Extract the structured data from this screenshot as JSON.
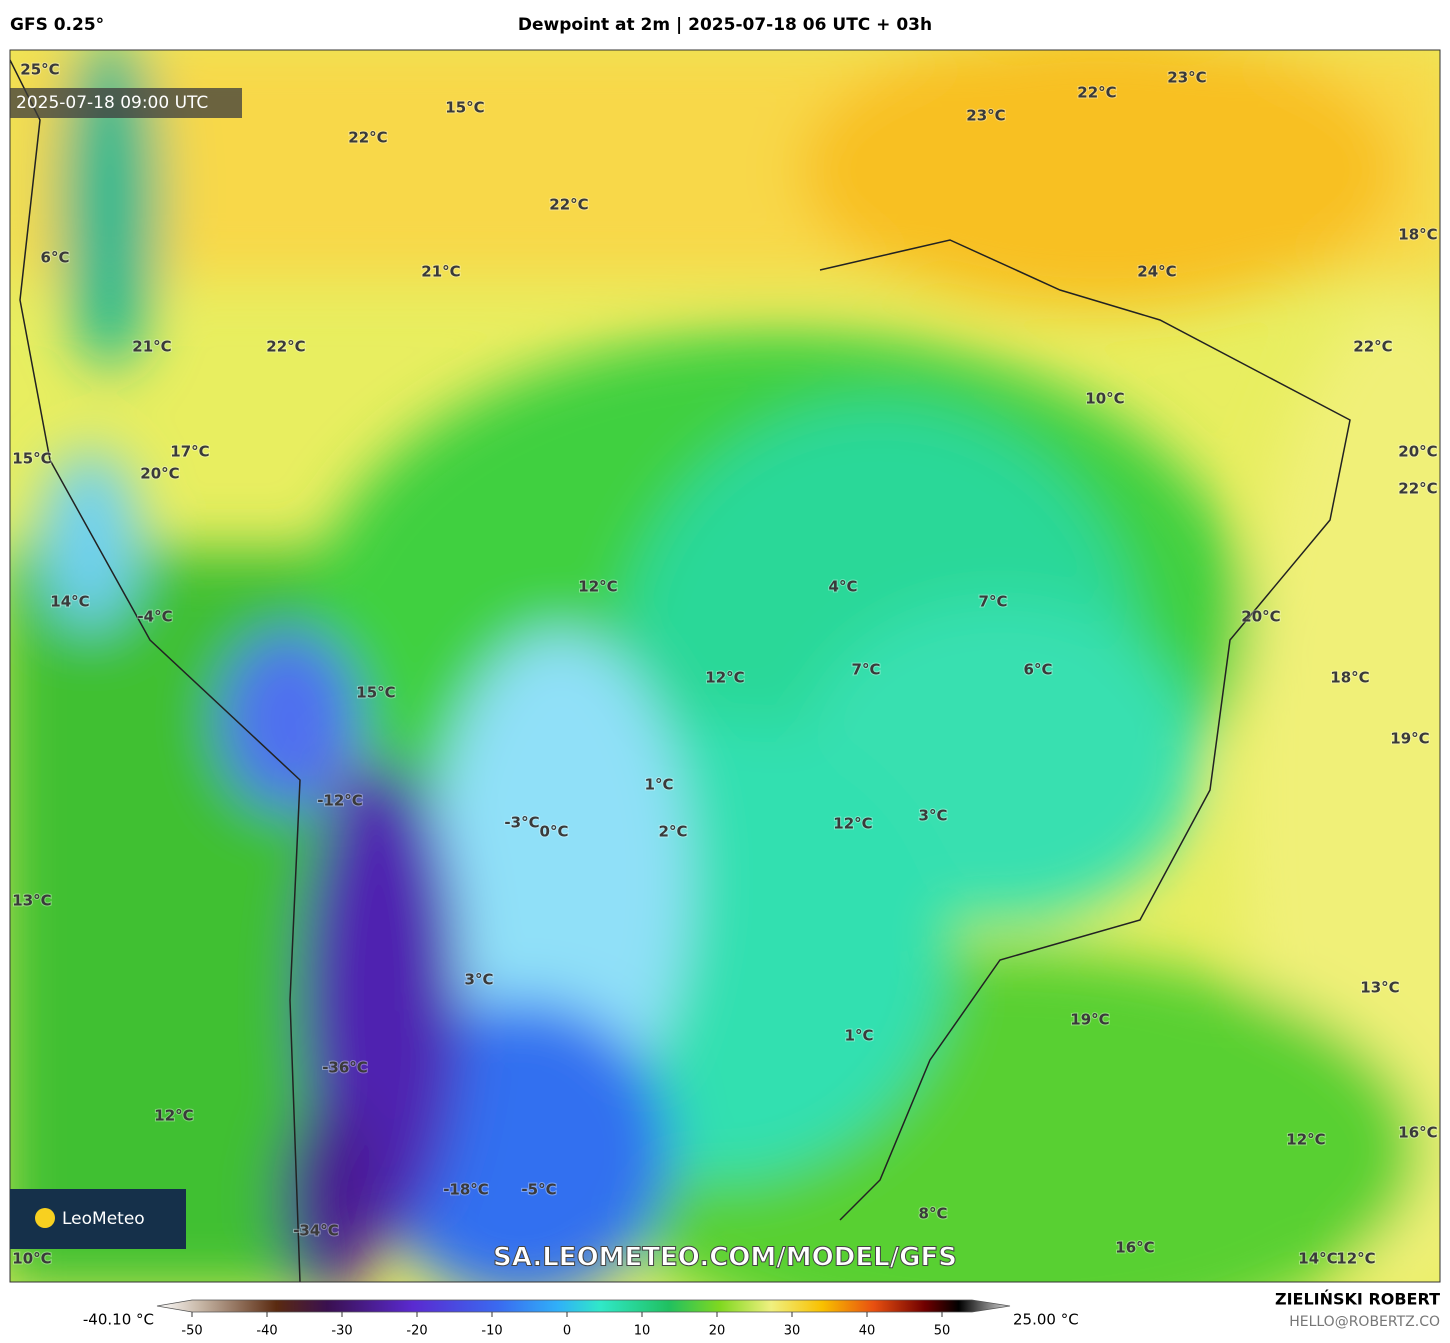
{
  "header": {
    "model": "GFS 0.25°",
    "title": "Dewpoint at 2m | 2025-07-18 06 UTC + 03h"
  },
  "map": {
    "valid_time": "2025-07-18 09:00 UTC",
    "watermark": "SA.LEOMETEO.COM/MODEL/GFS",
    "logo": "LeoMeteo",
    "labels": [
      "25°C",
      "15°C",
      "22°C",
      "22°C",
      "23°C",
      "23°C",
      "22°C",
      "18°C",
      "6°C",
      "21°C",
      "24°C",
      "21°C",
      "22°C",
      "22°C",
      "10°C",
      "17°C",
      "15°C",
      "20°C",
      "20°C",
      "22°C",
      "14°C",
      "-4°C",
      "12°C",
      "4°C",
      "7°C",
      "20°C",
      "7°C",
      "6°C",
      "12°C",
      "18°C",
      "15°C",
      "19°C",
      "1°C",
      "-12°C",
      "-3°C",
      "0°C",
      "2°C",
      "12°C",
      "3°C",
      "13°C",
      "3°C",
      "13°C",
      "19°C",
      "1°C",
      "-36°C",
      "12°C",
      "12°C",
      "16°C",
      "-18°C",
      "-5°C",
      "8°C",
      "-34°C",
      "16°C",
      "10°C",
      "14°C",
      "12°C"
    ]
  },
  "colorbar": {
    "min_label": "-40.10 °C",
    "max_label": "25.00 °C",
    "range": [
      -50,
      50
    ],
    "ticks": [
      -50,
      -40,
      -30,
      -20,
      -10,
      0,
      10,
      20,
      30,
      40,
      50
    ]
  },
  "footer": {
    "author": "ZIELIŃSKI ROBERT",
    "email": "HELLO@ROBERTZ.CO"
  }
}
